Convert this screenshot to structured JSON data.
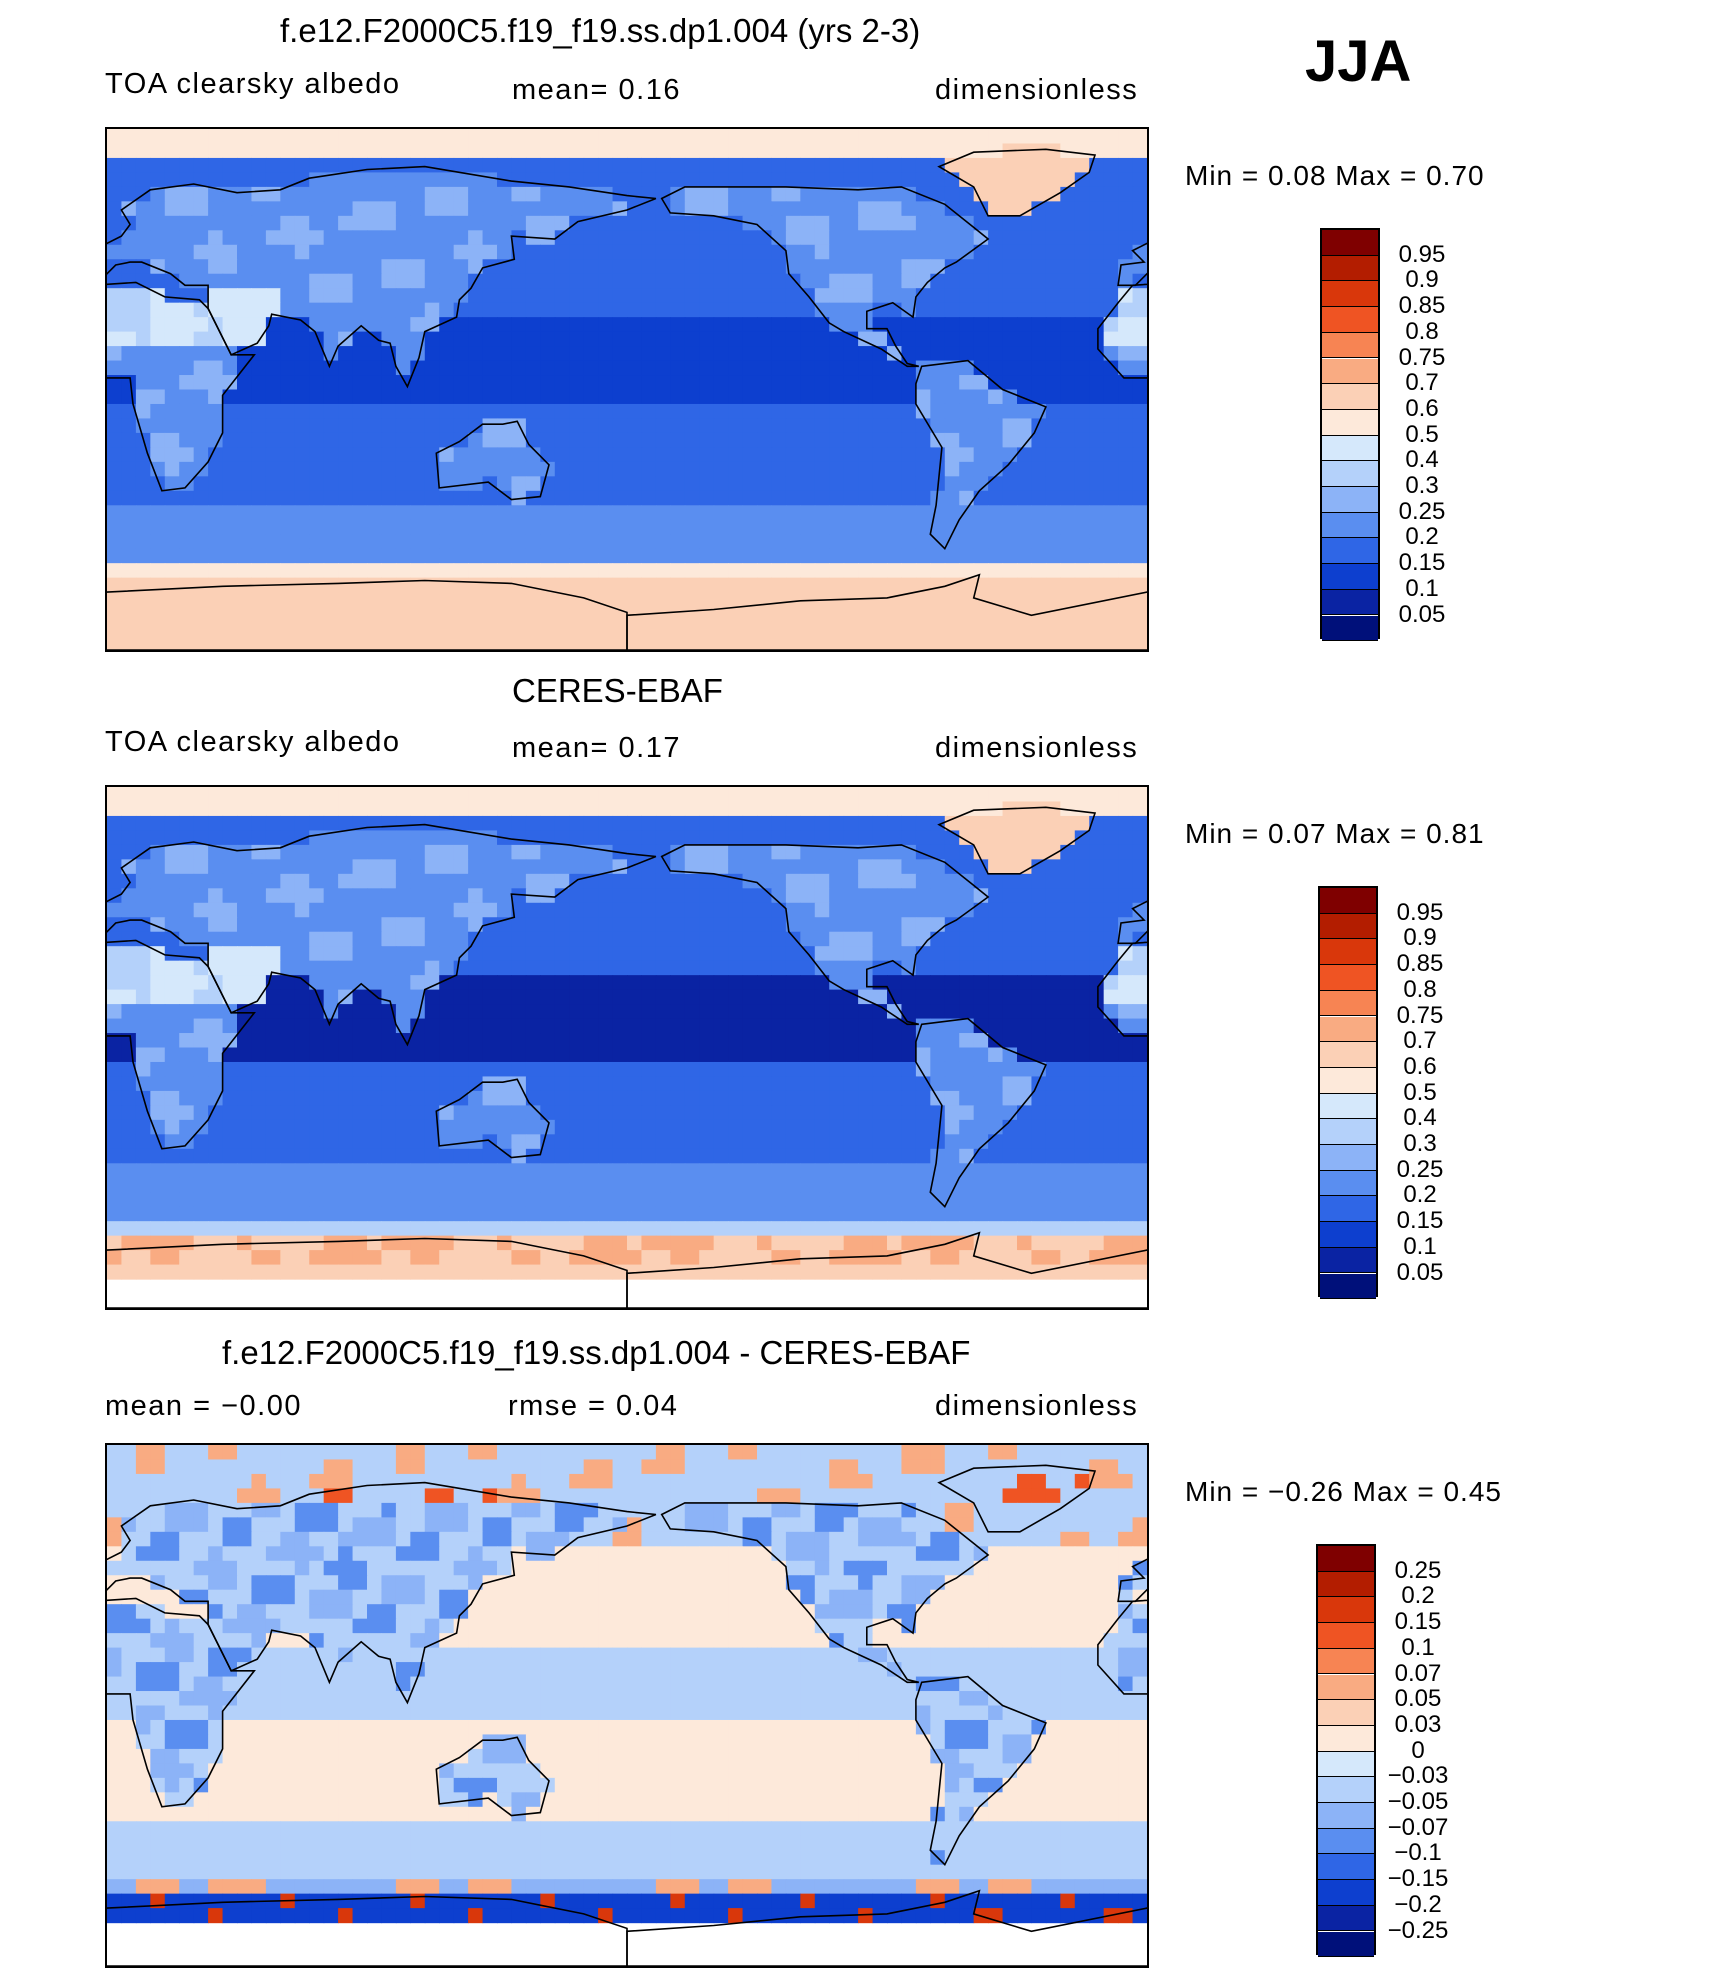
{
  "season": "JJA",
  "panels": [
    {
      "title": "f.e12.F2000C5.f19_f19.ss.dp1.004 (yrs 2-3)",
      "left_label": "TOA clearsky albedo",
      "center_label": "mean=    0.16",
      "right_label": "dimensionless",
      "minmax": "Min  =     0.08  Max  =     0.70",
      "levels": [
        "0.95",
        "0.9",
        "0.85",
        "0.8",
        "0.75",
        "0.7",
        "0.6",
        "0.5",
        "0.4",
        "0.3",
        "0.25",
        "0.2",
        "0.15",
        "0.1",
        "0.05"
      ],
      "colors": [
        "#7f0000",
        "#b31d00",
        "#d9370b",
        "#ef5423",
        "#f78453",
        "#f9ab82",
        "#fbd0b6",
        "#fde9da",
        "#d5e8fb",
        "#b4d1fa",
        "#8cb3f7",
        "#5a8ef0",
        "#2f66e6",
        "#0d3fcf",
        "#0a23a3",
        "#00107a"
      ],
      "field": "model"
    },
    {
      "title": "CERES-EBAF",
      "left_label": "TOA clearsky albedo",
      "center_label": "mean=    0.17",
      "right_label": "dimensionless",
      "minmax": "Min  =     0.07  Max  =     0.81",
      "levels": [
        "0.95",
        "0.9",
        "0.85",
        "0.8",
        "0.75",
        "0.7",
        "0.6",
        "0.5",
        "0.4",
        "0.3",
        "0.25",
        "0.2",
        "0.15",
        "0.1",
        "0.05"
      ],
      "colors": [
        "#7f0000",
        "#b31d00",
        "#d9370b",
        "#ef5423",
        "#f78453",
        "#f9ab82",
        "#fbd0b6",
        "#fde9da",
        "#d5e8fb",
        "#b4d1fa",
        "#8cb3f7",
        "#5a8ef0",
        "#2f66e6",
        "#0d3fcf",
        "#0a23a3",
        "#00107a"
      ],
      "field": "obs"
    },
    {
      "title": "f.e12.F2000C5.f19_f19.ss.dp1.004 - CERES-EBAF",
      "left_label": "mean  =    −0.00",
      "center_label": "rmse  =     0.04",
      "right_label": "dimensionless",
      "minmax": "Min  =    −0.26  Max  =     0.45",
      "levels": [
        "0.25",
        "0.2",
        "0.15",
        "0.1",
        "0.07",
        "0.05",
        "0.03",
        "0",
        "−0.03",
        "−0.05",
        "−0.07",
        "−0.1",
        "−0.15",
        "−0.2",
        "−0.25"
      ],
      "colors": [
        "#7f0000",
        "#b31d00",
        "#d9370b",
        "#ef5423",
        "#f78453",
        "#f9ab82",
        "#fbd0b6",
        "#fde9da",
        "#d5e8fb",
        "#b4d1fa",
        "#8cb3f7",
        "#5a8ef0",
        "#2f66e6",
        "#0d3fcf",
        "#0a23a3",
        "#00107a"
      ],
      "field": "diff"
    }
  ]
}
